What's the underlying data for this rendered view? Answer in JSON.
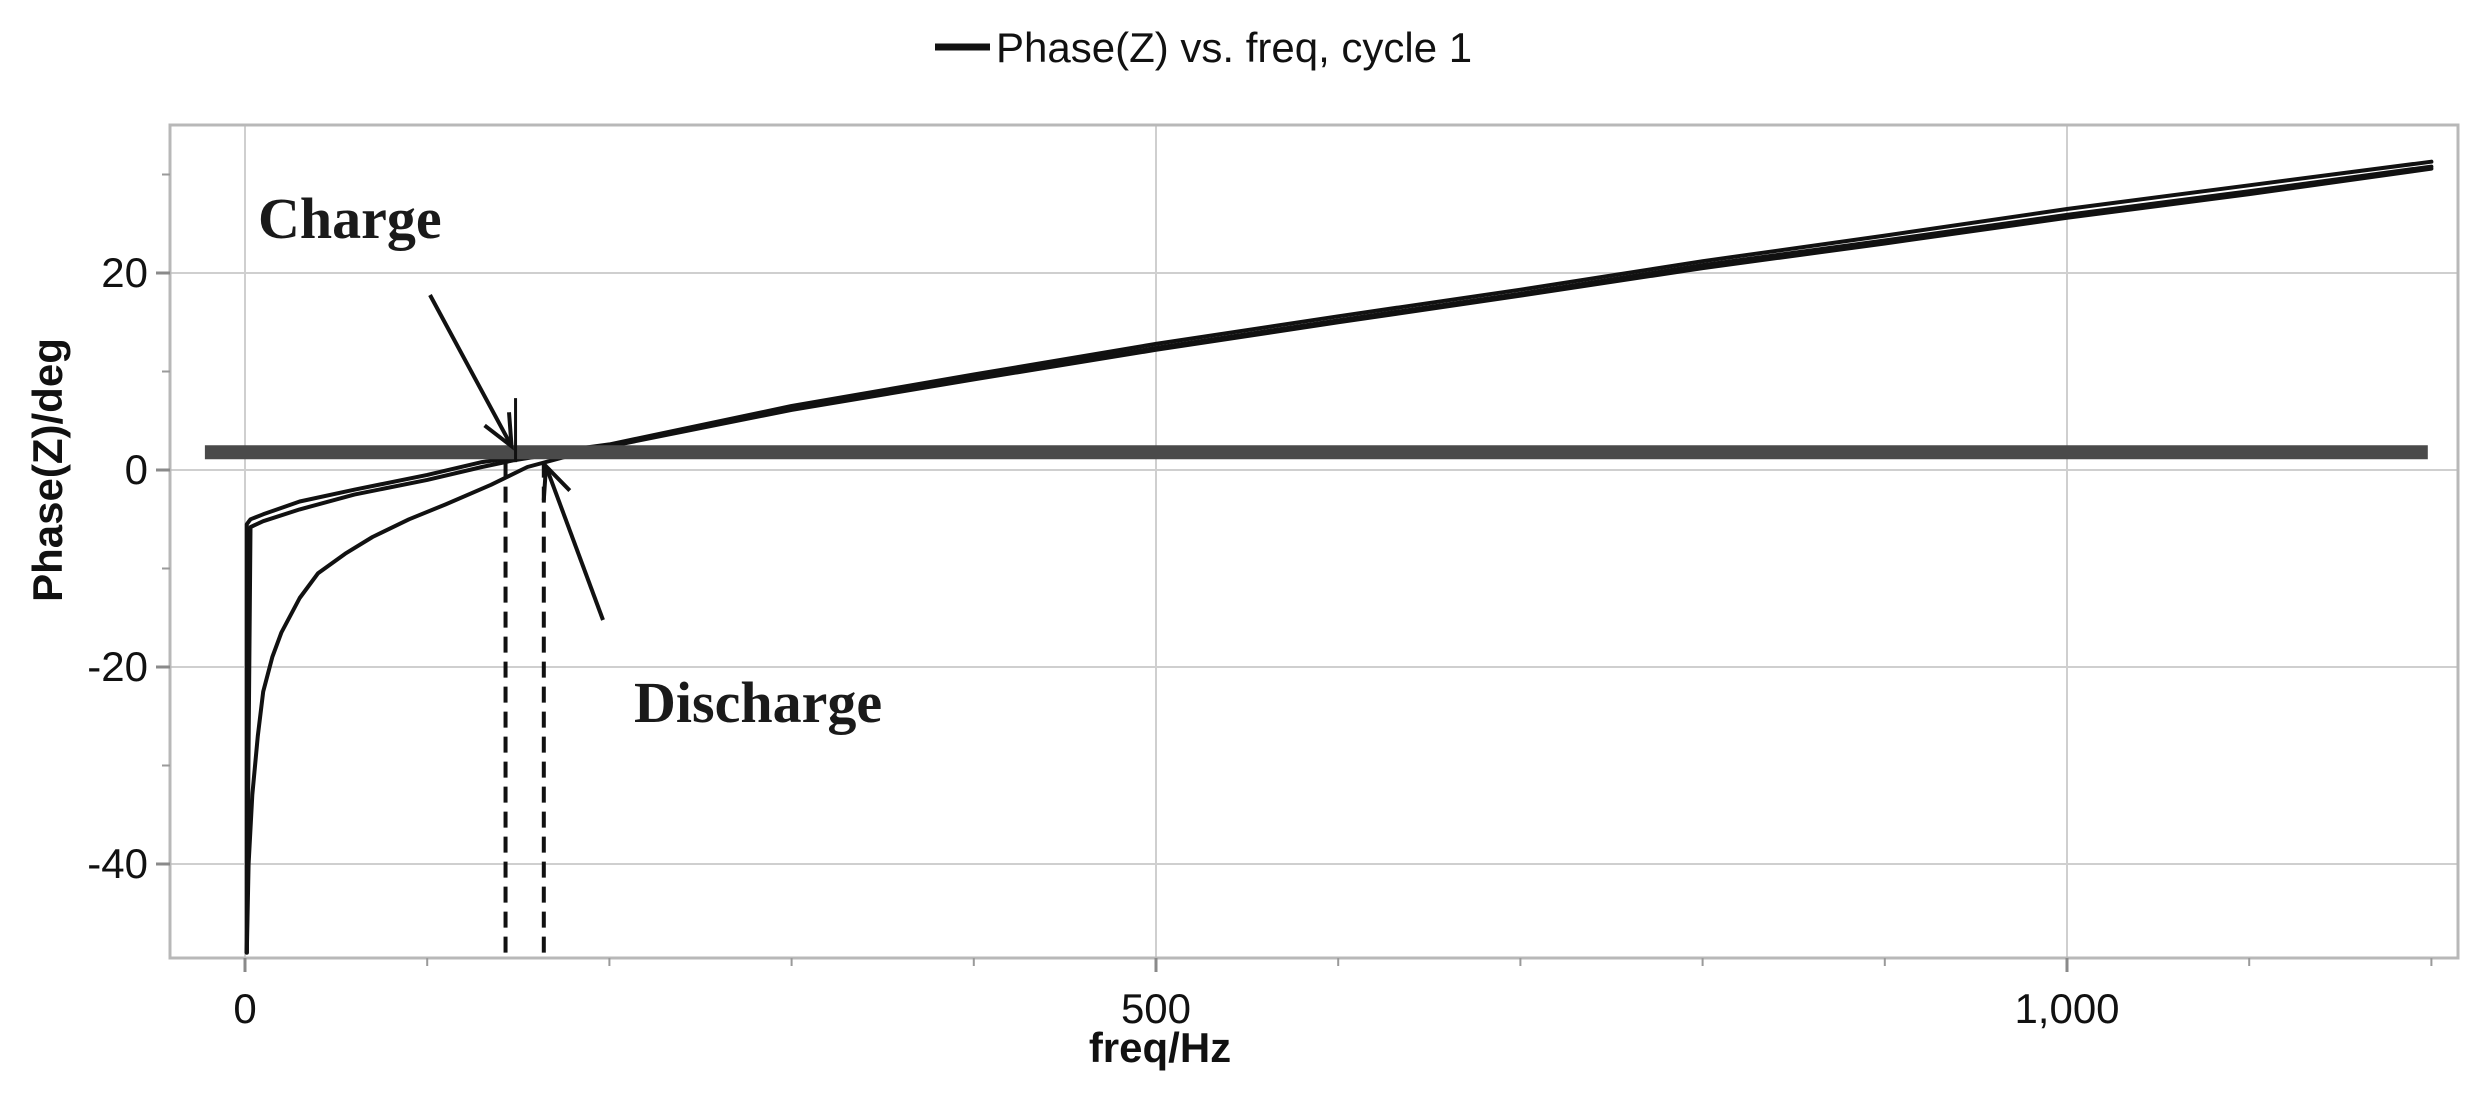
{
  "chart_data": {
    "type": "line",
    "xlabel": "freq/Hz",
    "ylabel": "Phase(Z)/deg",
    "xlim": [
      -20,
      1210
    ],
    "ylim": [
      -49,
      33
    ],
    "x_ticks": [
      0,
      500,
      1000
    ],
    "x_tick_labels": [
      "0",
      "500",
      "1,000"
    ],
    "y_ticks": [
      -40,
      -20,
      0,
      20
    ],
    "y_tick_labels": [
      "-40",
      "-20",
      "0",
      "20"
    ],
    "grid": true,
    "legend": {
      "position": "top-center",
      "entries": [
        "Phase(Z) vs. freq, cycle 1"
      ]
    },
    "series": [
      {
        "name": "Phase(Z) vs. freq, cycle 1",
        "segments": [
          {
            "x": [
              1,
              1,
              3,
              10,
              30,
              60,
              100,
              130,
              145,
              160,
              200,
              300,
              400,
              500,
              600,
              700,
              800,
              900,
              1000,
              1100,
              1200
            ],
            "y": [
              -49,
              -5.5,
              -5,
              -4.5,
              -3.2,
              -2,
              -0.5,
              0.8,
              1.2,
              1.6,
              2.6,
              6.5,
              9.7,
              12.8,
              15.6,
              18.3,
              21.2,
              23.8,
              26.5,
              28.9,
              31.3
            ]
          },
          {
            "x": [
              1,
              2,
              4,
              7,
              10,
              15,
              20,
              30,
              40,
              55,
              70,
              90,
              110,
              135,
              155,
              175,
              200,
              300,
              400,
              500,
              600,
              700,
              800,
              900,
              1000,
              1100,
              1200
            ],
            "y": [
              -49,
              -40,
              -33,
              -27,
              -22.5,
              -19,
              -16.5,
              -13,
              -10.5,
              -8.5,
              -6.8,
              -5,
              -3.5,
              -1.5,
              0.3,
              1.3,
              2.5,
              6.3,
              9.4,
              12.4,
              15.2,
              17.9,
              20.8,
              23.3,
              25.9,
              28.3,
              30.8
            ]
          },
          {
            "x": [
              1,
              3,
              10,
              30,
              60,
              100,
              130,
              148,
              165,
              200,
              300,
              400,
              500,
              600,
              700,
              800,
              900,
              1000,
              1100,
              1200
            ],
            "y": [
              -49,
              -5.8,
              -5.2,
              -4,
              -2.5,
              -1,
              0.3,
              1,
              1.5,
              2.4,
              6.1,
              9.2,
              12.2,
              15,
              17.7,
              20.5,
              23,
              25.6,
              28,
              30.6
            ]
          },
          {
            "x": [
              -22,
              1198
            ],
            "y": [
              1.8,
              1.8
            ]
          }
        ]
      }
    ],
    "annotations": [
      {
        "text": "Charge",
        "x": 143,
        "y": 1.2
      },
      {
        "text": "Discharge",
        "x": 163,
        "y": 1.8
      }
    ],
    "reference_lines": [
      {
        "style": "dashed",
        "x": 143,
        "y_from": -49,
        "y_to": 1.2
      },
      {
        "style": "dashed",
        "x": 164,
        "y_from": -49,
        "y_to": 1.8
      }
    ]
  }
}
